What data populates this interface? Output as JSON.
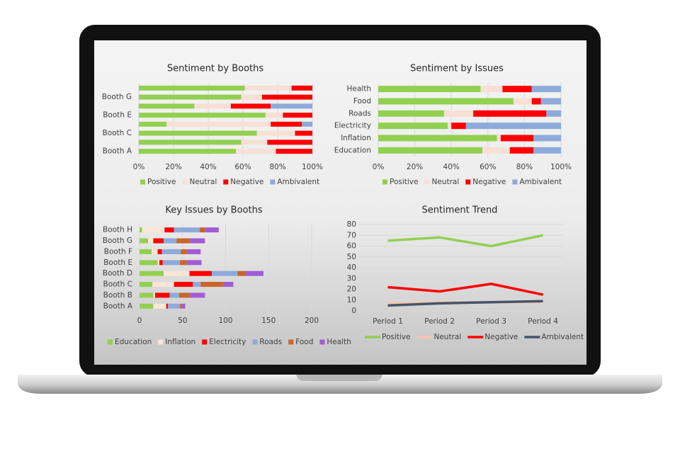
{
  "chart_data": [
    {
      "type": "bar",
      "orientation": "horizontal",
      "stacked": true,
      "title": "Sentiment by Booths",
      "categories": [
        "Booth A",
        null,
        "Booth C",
        null,
        "Booth E",
        null,
        "Booth G",
        null
      ],
      "series": [
        {
          "name": "Positive",
          "color": "#92d050",
          "values": [
            56,
            59,
            68,
            16,
            73,
            32,
            59,
            61
          ]
        },
        {
          "name": "Neutral",
          "color": "#f8e0d4",
          "values": [
            23,
            15,
            22,
            60,
            10,
            21,
            12,
            27
          ]
        },
        {
          "name": "Negative",
          "color": "#ff0000",
          "values": [
            21,
            26,
            10,
            18,
            17,
            23,
            29,
            12
          ]
        },
        {
          "name": "Ambivalent",
          "color": "#8eaadb",
          "values": [
            0,
            0,
            0,
            6,
            0,
            24,
            0,
            0
          ]
        }
      ],
      "xlim": [
        0,
        100
      ],
      "xticks": [
        {
          "value": 0,
          "label": "0%"
        },
        {
          "value": 20,
          "label": "20%"
        },
        {
          "value": 40,
          "label": "40%"
        },
        {
          "value": 60,
          "label": "60%"
        },
        {
          "value": 80,
          "label": "80%"
        },
        {
          "value": 100,
          "label": "100%"
        }
      ],
      "grid": true,
      "legend": "bottom"
    },
    {
      "type": "bar",
      "orientation": "horizontal",
      "stacked": true,
      "title": "Sentiment by Issues",
      "categories": [
        "Education",
        "Inflation",
        "Electricity",
        "Roads",
        "Food",
        "Health"
      ],
      "series": [
        {
          "name": "Positive",
          "color": "#92d050",
          "values": [
            57,
            65,
            38,
            36,
            74,
            56
          ]
        },
        {
          "name": "Neutral",
          "color": "#f8e0d4",
          "values": [
            15,
            2,
            2,
            16,
            10,
            12
          ]
        },
        {
          "name": "Negative",
          "color": "#ff0000",
          "values": [
            13,
            18,
            8,
            40,
            5,
            16
          ]
        },
        {
          "name": "Ambivalent",
          "color": "#8eaadb",
          "values": [
            15,
            15,
            52,
            8,
            11,
            16
          ]
        }
      ],
      "xlim": [
        0,
        100
      ],
      "xticks": [
        {
          "value": 0,
          "label": "0%"
        },
        {
          "value": 20,
          "label": "20%"
        },
        {
          "value": 40,
          "label": "40%"
        },
        {
          "value": 60,
          "label": "60%"
        },
        {
          "value": 80,
          "label": "80%"
        },
        {
          "value": 100,
          "label": "100%"
        }
      ],
      "grid": true,
      "legend": "bottom"
    },
    {
      "type": "bar",
      "orientation": "horizontal",
      "stacked": true,
      "title": "Key Issues by Booths",
      "categories": [
        "Booth A",
        "Booth B",
        "Booth C",
        "Booth D",
        "Booth E",
        "Booth F",
        "Booth G",
        "Booth H"
      ],
      "series": [
        {
          "name": "Education",
          "color": "#92d050",
          "values": [
            16,
            16,
            15,
            28,
            21,
            14,
            10,
            3
          ]
        },
        {
          "name": "Inflation",
          "color": "#fbe5d6",
          "values": [
            15,
            2,
            25,
            30,
            2,
            7,
            6,
            26
          ]
        },
        {
          "name": "Electricity",
          "color": "#ff0000",
          "values": [
            2,
            17,
            22,
            26,
            4,
            5,
            12,
            11
          ]
        },
        {
          "name": "Roads",
          "color": "#8eaadb",
          "values": [
            14,
            11,
            9,
            30,
            20,
            22,
            15,
            30
          ]
        },
        {
          "name": "Food",
          "color": "#c9652b",
          "values": [
            2,
            13,
            26,
            9,
            8,
            7,
            16,
            6
          ]
        },
        {
          "name": "Health",
          "color": "#a05cd6",
          "values": [
            4,
            17,
            12,
            21,
            17,
            16,
            17,
            16
          ]
        }
      ],
      "xlim": [
        0,
        200
      ],
      "xticks": [
        0,
        50,
        100,
        150,
        200
      ],
      "grid": true,
      "legend": "bottom"
    },
    {
      "type": "line",
      "title": "Sentiment Trend",
      "categories": [
        "Period 1",
        "Period 2",
        "Period 3",
        "Period 4"
      ],
      "series": [
        {
          "name": "Positive",
          "color": "#92d050",
          "values": [
            65,
            68,
            60,
            70
          ]
        },
        {
          "name": "Neutral",
          "color": "#f4c7b0",
          "values": [
            7,
            8,
            8,
            8
          ]
        },
        {
          "name": "Negative",
          "color": "#ff0000",
          "values": [
            22,
            18,
            25,
            15
          ]
        },
        {
          "name": "Ambivalent",
          "color": "#44546a",
          "values": [
            5,
            7,
            8,
            9
          ]
        }
      ],
      "ylim": [
        0,
        80
      ],
      "yticks": [
        0,
        10,
        20,
        30,
        40,
        50,
        60,
        70,
        80
      ],
      "grid": true,
      "legend": "bottom"
    }
  ]
}
